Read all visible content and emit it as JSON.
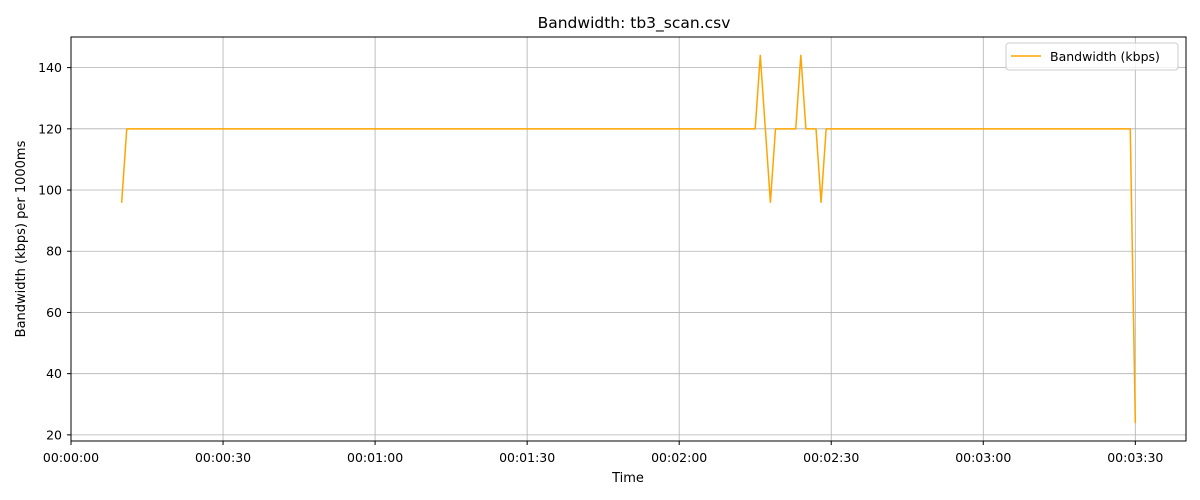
{
  "chart_data": {
    "type": "line",
    "title": "Bandwidth: tb3_scan.csv",
    "xlabel": "Time",
    "ylabel": "Bandwidth (kbps) per 1000ms",
    "xlim": [
      "00:00:00",
      "00:03:40"
    ],
    "ylim": [
      18,
      150
    ],
    "grid": true,
    "legend_position": "top-right",
    "x_ticks": [
      "00:00:00",
      "00:00:30",
      "00:01:00",
      "00:01:30",
      "00:02:00",
      "00:02:30",
      "00:03:00",
      "00:03:30"
    ],
    "y_ticks": [
      20,
      40,
      60,
      80,
      100,
      120,
      140
    ],
    "series": [
      {
        "name": "Bandwidth (kbps)",
        "color": "#FFA500",
        "x": [
          "00:00:10",
          "00:00:11",
          "00:02:15",
          "00:02:16",
          "00:02:17",
          "00:02:18",
          "00:02:19",
          "00:02:20",
          "00:02:21",
          "00:02:22",
          "00:02:23",
          "00:02:24",
          "00:02:25",
          "00:02:26",
          "00:02:27",
          "00:02:28",
          "00:02:29",
          "00:03:29",
          "00:03:30"
        ],
        "y": [
          96,
          120,
          120,
          144,
          120,
          96,
          120,
          120,
          120,
          120,
          120,
          144,
          120,
          120,
          120,
          96,
          120,
          120,
          24
        ]
      }
    ]
  }
}
